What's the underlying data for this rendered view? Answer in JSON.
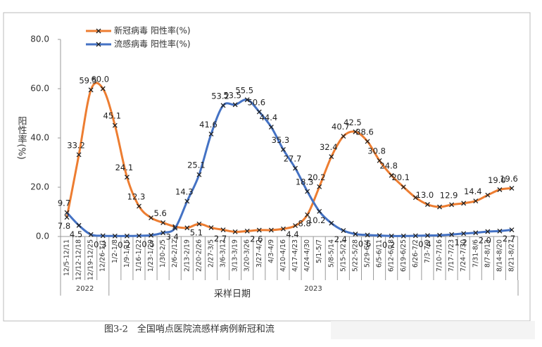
{
  "chart_data": {
    "type": "line",
    "ylabel": "阳性率(%)",
    "xlabel": "采样日期",
    "caption": "图3-2　全国哨点医院流感样病例新冠和流",
    "year_labels": [
      "2022",
      "2023"
    ],
    "categories": [
      "12/5-12/11",
      "12/12-12/18",
      "12/19-12/25",
      "12/26-1/1",
      "1/2-1/8",
      "1/9-1/15",
      "1/16-1/22",
      "1/23-1/29",
      "1/30-2/5",
      "2/6-2/12",
      "2/13-2/19",
      "2/20-2/26",
      "2/27-3/5",
      "3/6-3/12",
      "3/13-3/19",
      "3/20-3/26",
      "3/27-4/2",
      "4/3-4/9",
      "4/10-4/16",
      "4/17-4/23",
      "4/24-4/30",
      "5/1-5/7",
      "5/8-5/14",
      "5/15-5/21",
      "5/22-5/28",
      "5/29-6/4",
      "6/5-6/11",
      "6/12-6/18",
      "6/19-6/25",
      "6/26-7/2",
      "7/3-7/9",
      "7/10-7/16",
      "7/17-7/23",
      "7/24-7/30",
      "7/31-8/6",
      "8/7-8/13",
      "8/14-8/20",
      "8/21-8/27"
    ],
    "series": [
      {
        "name": "新冠病毒 阳性率(%)",
        "color": "#ed7d31",
        "values": [
          7.8,
          33.2,
          59.5,
          60.0,
          45.1,
          24.1,
          12.3,
          7.6,
          5.6,
          4.0,
          3.5,
          5.1,
          3.6,
          2.7,
          1.9,
          2.2,
          2.6,
          2.6,
          3.1,
          4.4,
          8.8,
          20.2,
          32.4,
          40.7,
          42.5,
          38.6,
          30.8,
          24.8,
          20.1,
          15.8,
          13.0,
          12.0,
          12.9,
          13.5,
          14.4,
          16.8,
          19.0,
          19.6
        ],
        "value_labels": [
          "7.8",
          "33.2",
          "59.5",
          "60.0",
          "45.1",
          "24.1",
          "12.3",
          null,
          "5.6",
          null,
          null,
          "5.1",
          null,
          "2.7",
          null,
          null,
          "2.6",
          null,
          null,
          "4.4",
          "8.8",
          "20.2",
          "32.4",
          "40.7",
          "42.5",
          "38.6",
          "30.8",
          "24.8",
          "20.1",
          null,
          "13.0",
          null,
          "12.9",
          null,
          "14.4",
          null,
          "19.0",
          "19.6"
        ]
      },
      {
        "name": "流感病毒 阳性率(%)",
        "color": "#4472c4",
        "values": [
          9.7,
          4.5,
          0.8,
          0.3,
          0.2,
          0.2,
          0.3,
          0.5,
          1.5,
          3.4,
          14.3,
          25.1,
          41.6,
          53.2,
          53.5,
          55.5,
          50.6,
          44.4,
          35.3,
          27.7,
          18.3,
          10.2,
          5.4,
          2.4,
          1.0,
          0.6,
          0.4,
          0.2,
          0.2,
          0.3,
          0.4,
          0.5,
          0.8,
          1.2,
          1.5,
          2.0,
          2.2,
          2.7
        ],
        "value_labels": [
          "9.7",
          "4.5",
          null,
          "0.3",
          null,
          "0.2",
          null,
          "0.5",
          null,
          "3.4",
          "14.3",
          "25.1",
          "41.6",
          "53.2",
          "53.5",
          "55.5",
          "50.6",
          "44.4",
          "35.3",
          "27.7",
          "18.3",
          "10.2",
          null,
          "2.4",
          null,
          "0.6",
          null,
          "0.2",
          null,
          null,
          "0.4",
          null,
          null,
          "1.2",
          null,
          "2.0",
          null,
          "2.7"
        ]
      }
    ],
    "ylim": [
      0,
      80
    ],
    "yticks": [
      {
        "value": 0,
        "label": "0.0"
      },
      {
        "value": 20,
        "label": "20.0"
      },
      {
        "value": 40,
        "label": "40.0"
      },
      {
        "value": 60,
        "label": "60.0"
      },
      {
        "value": 80,
        "label": "80.0"
      }
    ],
    "grid": false,
    "legend": "upper left"
  }
}
